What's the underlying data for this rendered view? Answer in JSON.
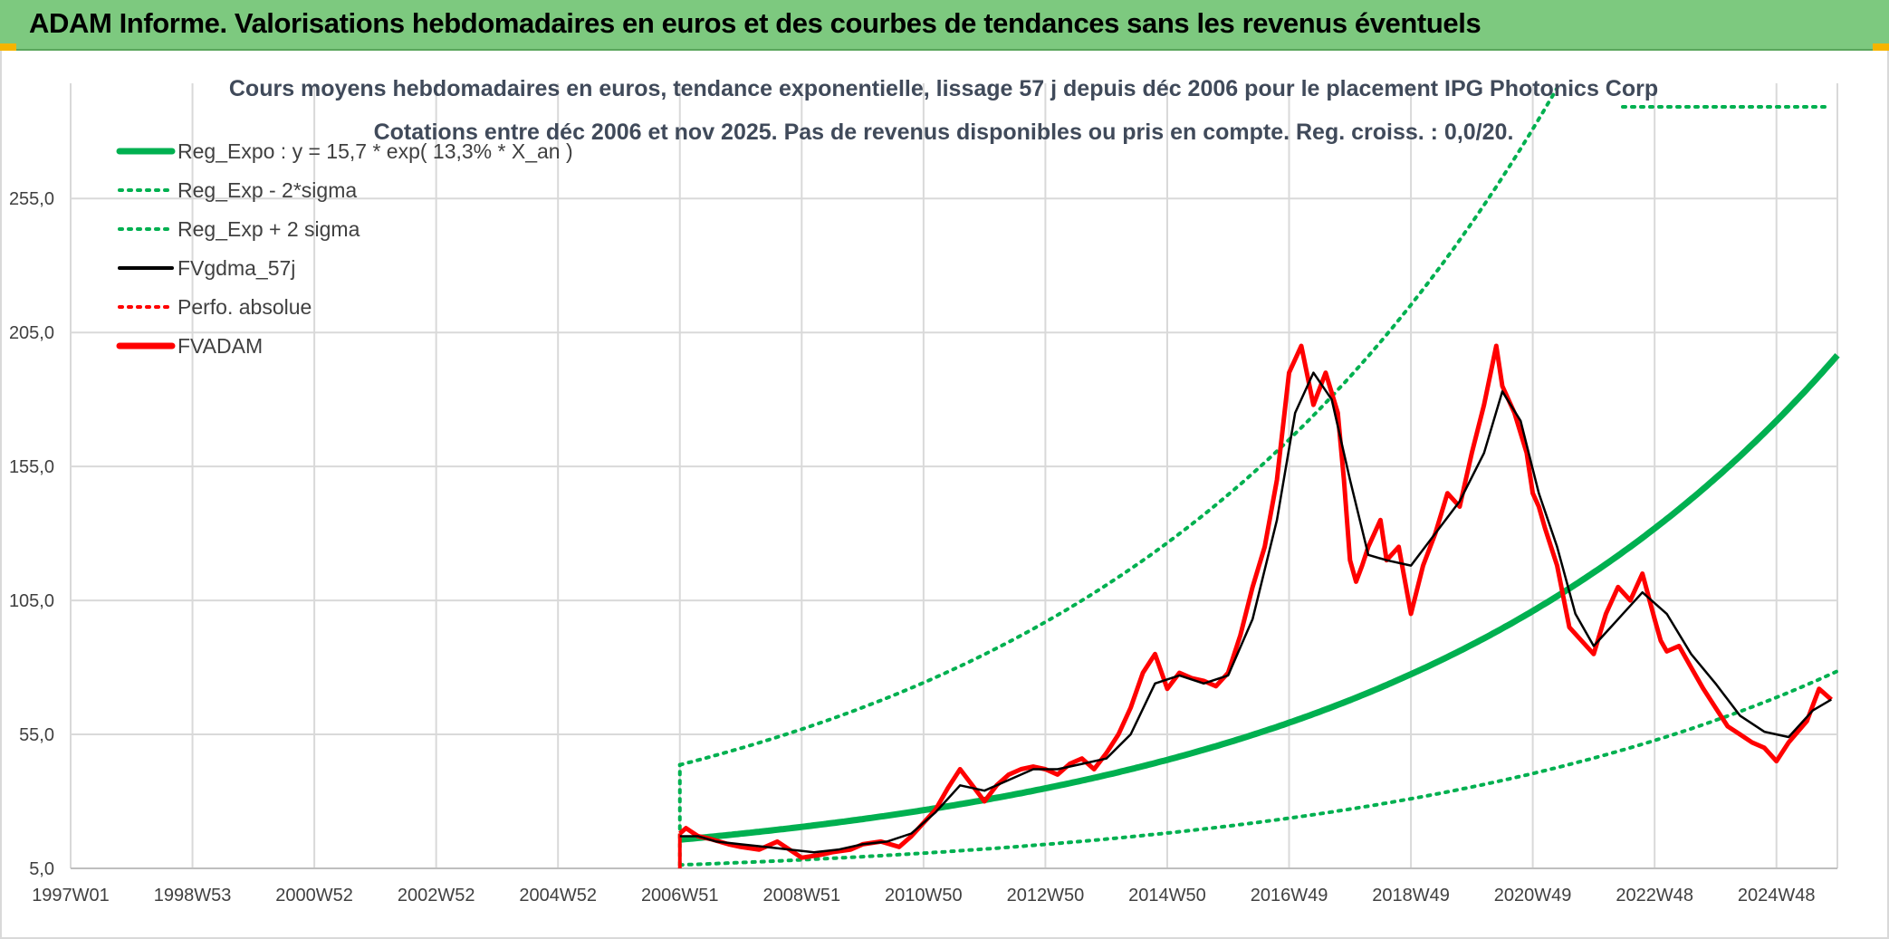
{
  "header": {
    "title": "ADAM Informe. Valorisations hebdomadaires en euros et des courbes de tendances sans les revenus éventuels"
  },
  "colors": {
    "header_bg": "#7dc97f",
    "green": "#00b050",
    "red": "#ff0000",
    "black": "#000000",
    "grid": "#d9d9d9"
  },
  "chart_data": {
    "type": "line",
    "title": "Cours moyens hebdomadaires en euros, tendance exponentielle, lissage 57 j depuis déc 2006 pour le placement IPG Photonics Corp",
    "subtitle": "Cotations entre déc 2006 et nov 2025. Pas de revenus disponibles ou pris en compte. Reg. croiss. : 0,0/20.",
    "x_tick_labels": [
      "1997W01",
      "1998W53",
      "2000W52",
      "2002W52",
      "2004W52",
      "2006W51",
      "2008W51",
      "2010W50",
      "2012W50",
      "2014W50",
      "2016W49",
      "2018W49",
      "2020W49",
      "2022W48",
      "2024W48"
    ],
    "x_tick_years": [
      1997.0,
      1999.0,
      2001.0,
      2003.0,
      2005.0,
      2007.0,
      2009.0,
      2011.0,
      2013.0,
      2015.0,
      2017.0,
      2019.0,
      2021.0,
      2023.0,
      2025.0
    ],
    "xlim": [
      1997.0,
      2026.0
    ],
    "ylim": [
      5.0,
      298.0
    ],
    "y_ticks": [
      5.0,
      55.0,
      105.0,
      155.0,
      205.0,
      255.0
    ],
    "y_tick_labels": [
      "5,0",
      "55,0",
      "105,0",
      "155,0",
      "205,0",
      "255,0"
    ],
    "grid": true,
    "legend_position": "top-left",
    "legend": [
      {
        "label": "Reg_Expo : y = 15,7 * exp( 13,3% *  X_an )",
        "color": "#00b050",
        "style": "solid-thick"
      },
      {
        "label": "Reg_Exp - 2*sigma",
        "color": "#00b050",
        "style": "dotted"
      },
      {
        "label": "Reg_Exp + 2 sigma",
        "color": "#00b050",
        "style": "dotted"
      },
      {
        "label": "FVgdma_57j",
        "color": "#000000",
        "style": "solid"
      },
      {
        "label": "Perfo. absolue",
        "color": "#ff0000",
        "style": "dotted"
      },
      {
        "label": "FVADAM",
        "color": "#ff0000",
        "style": "solid-thick"
      }
    ],
    "regression": {
      "a": 15.7,
      "b": 0.133,
      "t0": 2007.0,
      "lower_factor": 0.4,
      "upper_factor": 2.78
    },
    "series": [
      {
        "name": "FVADAM",
        "x": [
          2007.0,
          2007.1,
          2007.3,
          2007.5,
          2007.8,
          2008.0,
          2008.3,
          2008.6,
          2008.8,
          2009.0,
          2009.3,
          2009.5,
          2009.8,
          2010.0,
          2010.3,
          2010.6,
          2010.8,
          2011.0,
          2011.2,
          2011.4,
          2011.6,
          2011.8,
          2012.0,
          2012.2,
          2012.4,
          2012.6,
          2012.8,
          2013.0,
          2013.2,
          2013.4,
          2013.6,
          2013.8,
          2014.0,
          2014.2,
          2014.4,
          2014.6,
          2014.8,
          2015.0,
          2015.2,
          2015.4,
          2015.6,
          2015.8,
          2016.0,
          2016.2,
          2016.4,
          2016.6,
          2016.8,
          2017.0,
          2017.2,
          2017.4,
          2017.6,
          2017.8,
          2017.9,
          2018.0,
          2018.1,
          2018.2,
          2018.3,
          2018.4,
          2018.5,
          2018.6,
          2018.8,
          2019.0,
          2019.2,
          2019.4,
          2019.6,
          2019.8,
          2020.0,
          2020.2,
          2020.4,
          2020.5,
          2020.7,
          2020.9,
          2021.0,
          2021.1,
          2021.2,
          2021.4,
          2021.6,
          2021.8,
          2022.0,
          2022.2,
          2022.4,
          2022.6,
          2022.8,
          2023.0,
          2023.1,
          2023.2,
          2023.4,
          2023.6,
          2023.8,
          2024.0,
          2024.2,
          2024.4,
          2024.6,
          2024.8,
          2025.0,
          2025.2,
          2025.5,
          2025.7,
          2025.9
        ],
        "values": [
          18,
          20,
          17,
          16,
          14,
          13,
          12,
          15,
          12,
          9,
          10,
          11,
          12,
          14,
          15,
          13,
          17,
          22,
          27,
          35,
          42,
          36,
          30,
          36,
          40,
          42,
          43,
          42,
          40,
          44,
          46,
          42,
          48,
          55,
          65,
          78,
          85,
          72,
          78,
          76,
          75,
          73,
          78,
          92,
          110,
          125,
          150,
          190,
          200,
          178,
          190,
          175,
          150,
          120,
          112,
          118,
          125,
          130,
          135,
          120,
          125,
          100,
          118,
          130,
          145,
          140,
          160,
          178,
          200,
          185,
          175,
          160,
          145,
          140,
          132,
          118,
          95,
          90,
          85,
          100,
          110,
          105,
          115,
          98,
          90,
          86,
          88,
          80,
          72,
          65,
          58,
          55,
          52,
          50,
          45,
          52,
          60,
          72,
          68
        ]
      },
      {
        "name": "FVgdma_57j",
        "x": [
          2007.0,
          2007.3,
          2007.6,
          2008.0,
          2008.4,
          2008.8,
          2009.2,
          2009.6,
          2010.0,
          2010.4,
          2010.8,
          2011.2,
          2011.6,
          2012.0,
          2012.4,
          2012.8,
          2013.2,
          2013.6,
          2014.0,
          2014.4,
          2014.8,
          2015.2,
          2015.6,
          2016.0,
          2016.4,
          2016.8,
          2017.1,
          2017.4,
          2017.7,
          2018.0,
          2018.3,
          2018.6,
          2019.0,
          2019.4,
          2019.8,
          2020.2,
          2020.5,
          2020.8,
          2021.1,
          2021.4,
          2021.7,
          2022.0,
          2022.4,
          2022.8,
          2023.2,
          2023.6,
          2024.0,
          2024.4,
          2024.8,
          2025.2,
          2025.6,
          2025.9
        ],
        "values": [
          17,
          17,
          15,
          14,
          13,
          12,
          11,
          12,
          14,
          15,
          18,
          26,
          36,
          34,
          38,
          42,
          42,
          44,
          46,
          55,
          74,
          77,
          74,
          77,
          98,
          135,
          175,
          190,
          180,
          150,
          122,
          120,
          118,
          130,
          142,
          160,
          183,
          172,
          145,
          125,
          100,
          88,
          98,
          108,
          100,
          85,
          74,
          62,
          56,
          54,
          64,
          68
        ]
      }
    ]
  }
}
